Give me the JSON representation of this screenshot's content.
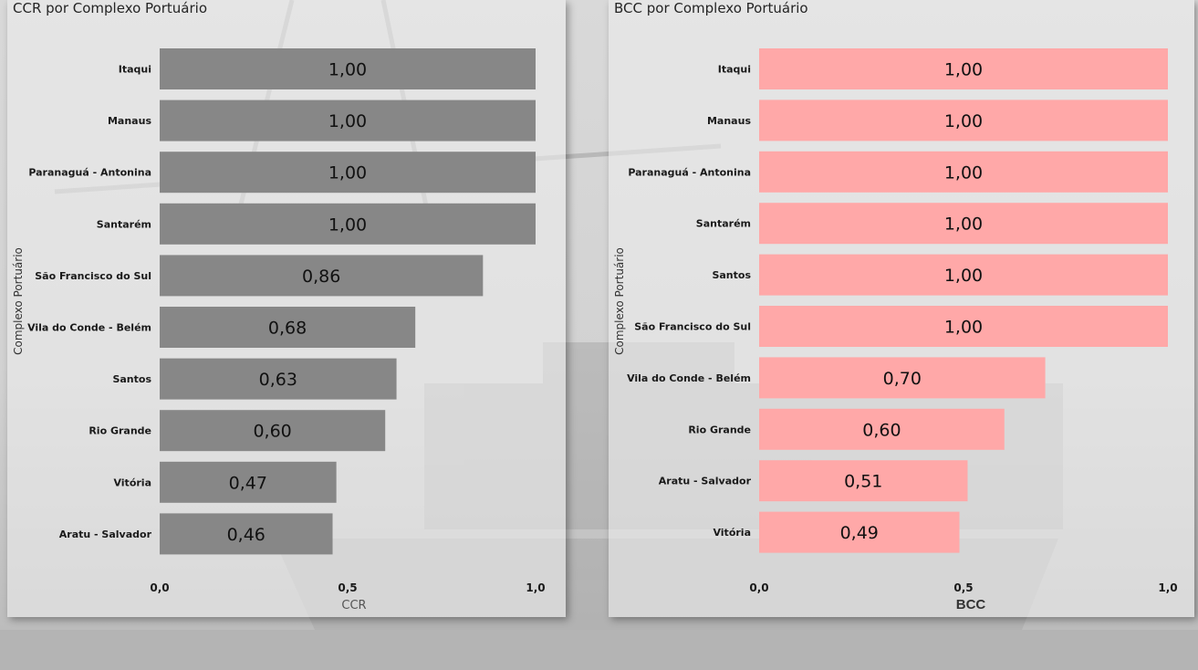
{
  "chart_data": [
    {
      "type": "bar",
      "orientation": "horizontal",
      "title": "CCR por Complexo Portuário",
      "xlabel": "CCR",
      "ylabel": "Complexo Portuário",
      "categories": [
        "Itaqui",
        "Manaus",
        "Paranaguá - Antonina",
        "Santarém",
        "São Francisco do Sul",
        "Vila do Conde - Belém",
        "Santos",
        "Rio Grande",
        "Vitória",
        "Aratu - Salvador"
      ],
      "values": [
        1.0,
        1.0,
        1.0,
        1.0,
        0.86,
        0.68,
        0.63,
        0.6,
        0.47,
        0.46
      ],
      "value_labels": [
        "1,00",
        "1,00",
        "1,00",
        "1,00",
        "0,86",
        "0,68",
        "0,63",
        "0,60",
        "0,47",
        "0,46"
      ],
      "xlim": [
        0,
        1
      ],
      "xticks": [
        0,
        0.5,
        1
      ],
      "xtick_labels": [
        "0,0",
        "0,5",
        "1,0"
      ],
      "grid": false,
      "bar_color": "#878787"
    },
    {
      "type": "bar",
      "orientation": "horizontal",
      "title": "BCC por Complexo Portuário",
      "xlabel": "BCC",
      "ylabel": "Complexo Portuário",
      "categories": [
        "Itaqui",
        "Manaus",
        "Paranaguá - Antonina",
        "Santarém",
        "Santos",
        "São Francisco do Sul",
        "Vila do Conde - Belém",
        "Rio Grande",
        "Aratu - Salvador",
        "Vitória"
      ],
      "values": [
        1.0,
        1.0,
        1.0,
        1.0,
        1.0,
        1.0,
        0.7,
        0.6,
        0.51,
        0.49
      ],
      "value_labels": [
        "1,00",
        "1,00",
        "1,00",
        "1,00",
        "1,00",
        "1,00",
        "0,70",
        "0,60",
        "0,51",
        "0,49"
      ],
      "xlim": [
        0,
        1
      ],
      "xticks": [
        0,
        0.5,
        1
      ],
      "xtick_labels": [
        "0,0",
        "0,5",
        "1,0"
      ],
      "grid": false,
      "bar_color": "#ffa8a8"
    }
  ]
}
